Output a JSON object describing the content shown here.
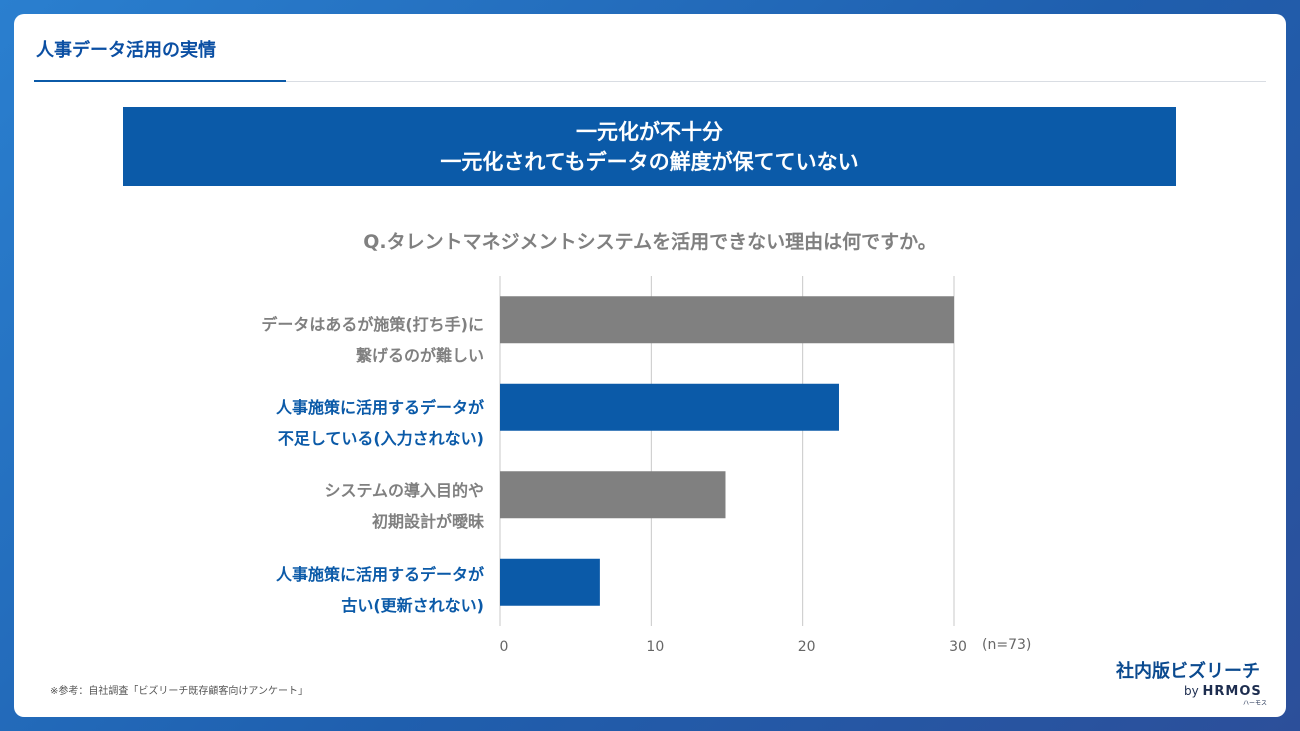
{
  "header": {
    "title": "人事データ活用の実情"
  },
  "banner": {
    "line1": "一元化が不十分",
    "line2": "一元化されてもデータの鮮度が保てていない"
  },
  "question": "Q.タレントマネジメントシステムを活用できない理由は何ですか。",
  "colors": {
    "gray_bar": "#808080",
    "blue_bar": "#0b5aa8",
    "gridline": "#c8c8c8",
    "brand": "#0b5aa8"
  },
  "chart_data": {
    "type": "bar",
    "orientation": "horizontal",
    "categories": [
      {
        "line1": "データはあるが施策(打ち手)に",
        "line2": "繋げるのが難しい",
        "color": "gray"
      },
      {
        "line1": "人事施策に活用するデータが",
        "line2": "不足している(入力されない)",
        "color": "blue"
      },
      {
        "line1": "システムの導入目的や",
        "line2": "初期設計が曖昧",
        "color": "gray"
      },
      {
        "line1": "人事施策に活用するデータが",
        "line2": "古い(更新されない)",
        "color": "blue"
      }
    ],
    "values": [
      30,
      22.4,
      14.9,
      6.6
    ],
    "xlim": [
      0,
      30
    ],
    "xticks": [
      "0",
      "10",
      "20",
      "30"
    ],
    "grid": true,
    "note": "(n=73)"
  },
  "footnote": "※参考：自社調査「ビズリーチ既存顧客向けアンケート」",
  "logo": {
    "main": "社内版ビズリーチ",
    "by": "by",
    "brand": "HRMOS",
    "kana": "ハーモス"
  }
}
